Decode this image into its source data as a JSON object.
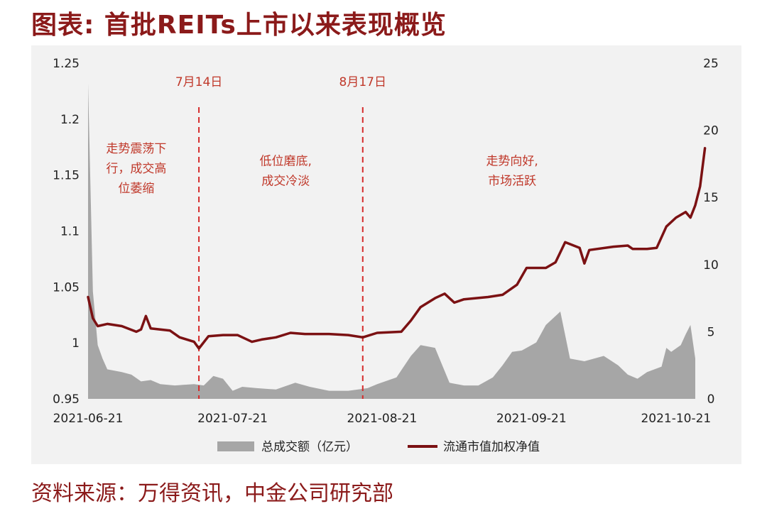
{
  "title": "图表: 首批REITs上市以来表现概览",
  "source": "资料来源：万得资讯，中金公司研究部",
  "colors": {
    "line": "#7b1113",
    "area": "#a6a6a6",
    "annotation": "#d62b2b",
    "title": "#8b1a1a"
  },
  "chart_data": {
    "type": "line",
    "x_type": "date",
    "x_range": [
      "2021-06-21",
      "2021-10-25"
    ],
    "x_ticks": [
      "2021-06-21",
      "2021-07-21",
      "2021-08-21",
      "2021-09-21",
      "2021-10-21"
    ],
    "left_axis": {
      "min": 0.95,
      "max": 1.25,
      "ticks": [
        "0.95",
        "1",
        "1.05",
        "1.1",
        "1.15",
        "1.2",
        "1.25"
      ]
    },
    "right_axis": {
      "min": 0,
      "max": 25,
      "ticks": [
        "0",
        "5",
        "10",
        "15",
        "20",
        "25"
      ]
    },
    "legend_position": "bottom",
    "series": [
      {
        "name": "总成交额（亿元）",
        "type": "area",
        "axis": "right",
        "points": [
          [
            "2021-06-21",
            23.5
          ],
          [
            "2021-06-22",
            8.0
          ],
          [
            "2021-06-23",
            4.0
          ],
          [
            "2021-06-24",
            3.0
          ],
          [
            "2021-06-25",
            2.2
          ],
          [
            "2021-06-28",
            2.0
          ],
          [
            "2021-06-30",
            1.8
          ],
          [
            "2021-07-02",
            1.3
          ],
          [
            "2021-07-04",
            1.4
          ],
          [
            "2021-07-06",
            1.1
          ],
          [
            "2021-07-09",
            1.0
          ],
          [
            "2021-07-13",
            1.1
          ],
          [
            "2021-07-15",
            1.0
          ],
          [
            "2021-07-17",
            1.7
          ],
          [
            "2021-07-19",
            1.5
          ],
          [
            "2021-07-21",
            0.6
          ],
          [
            "2021-07-23",
            0.9
          ],
          [
            "2021-07-26",
            0.8
          ],
          [
            "2021-07-30",
            0.7
          ],
          [
            "2021-08-03",
            1.2
          ],
          [
            "2021-08-06",
            0.9
          ],
          [
            "2021-08-10",
            0.6
          ],
          [
            "2021-08-14",
            0.6
          ],
          [
            "2021-08-18",
            0.8
          ],
          [
            "2021-08-20",
            1.1
          ],
          [
            "2021-08-24",
            1.6
          ],
          [
            "2021-08-27",
            3.2
          ],
          [
            "2021-08-29",
            4.0
          ],
          [
            "2021-09-01",
            3.8
          ],
          [
            "2021-09-04",
            1.2
          ],
          [
            "2021-09-07",
            1.0
          ],
          [
            "2021-09-10",
            1.0
          ],
          [
            "2021-09-13",
            1.6
          ],
          [
            "2021-09-15",
            2.5
          ],
          [
            "2021-09-17",
            3.5
          ],
          [
            "2021-09-19",
            3.6
          ],
          [
            "2021-09-22",
            4.2
          ],
          [
            "2021-09-24",
            5.5
          ],
          [
            "2021-09-27",
            6.5
          ],
          [
            "2021-09-29",
            3.0
          ],
          [
            "2021-10-02",
            2.8
          ],
          [
            "2021-10-06",
            3.2
          ],
          [
            "2021-10-09",
            2.5
          ],
          [
            "2021-10-11",
            1.8
          ],
          [
            "2021-10-13",
            1.5
          ],
          [
            "2021-10-15",
            2.0
          ],
          [
            "2021-10-18",
            2.4
          ],
          [
            "2021-10-19",
            3.8
          ],
          [
            "2021-10-20",
            3.5
          ],
          [
            "2021-10-22",
            4.0
          ],
          [
            "2021-10-23",
            4.8
          ],
          [
            "2021-10-24",
            5.5
          ],
          [
            "2021-10-25",
            3.0
          ]
        ]
      },
      {
        "name": "流通市值加权净值",
        "type": "line",
        "axis": "left",
        "points": [
          [
            "2021-06-21",
            1.041
          ],
          [
            "2021-06-22",
            1.022
          ],
          [
            "2021-06-23",
            1.015
          ],
          [
            "2021-06-25",
            1.017
          ],
          [
            "2021-06-28",
            1.015
          ],
          [
            "2021-07-01",
            1.01
          ],
          [
            "2021-07-02",
            1.012
          ],
          [
            "2021-07-03",
            1.024
          ],
          [
            "2021-07-04",
            1.013
          ],
          [
            "2021-07-08",
            1.011
          ],
          [
            "2021-07-10",
            1.005
          ],
          [
            "2021-07-13",
            1.001
          ],
          [
            "2021-07-14",
            0.995
          ],
          [
            "2021-07-16",
            1.006
          ],
          [
            "2021-07-19",
            1.007
          ],
          [
            "2021-07-22",
            1.007
          ],
          [
            "2021-07-25",
            1.001
          ],
          [
            "2021-07-27",
            1.003
          ],
          [
            "2021-07-30",
            1.005
          ],
          [
            "2021-08-02",
            1.009
          ],
          [
            "2021-08-05",
            1.008
          ],
          [
            "2021-08-10",
            1.008
          ],
          [
            "2021-08-14",
            1.007
          ],
          [
            "2021-08-17",
            1.005
          ],
          [
            "2021-08-20",
            1.009
          ],
          [
            "2021-08-25",
            1.01
          ],
          [
            "2021-08-27",
            1.02
          ],
          [
            "2021-08-29",
            1.032
          ],
          [
            "2021-09-01",
            1.04
          ],
          [
            "2021-09-03",
            1.044
          ],
          [
            "2021-09-05",
            1.036
          ],
          [
            "2021-09-07",
            1.039
          ],
          [
            "2021-09-12",
            1.041
          ],
          [
            "2021-09-15",
            1.043
          ],
          [
            "2021-09-18",
            1.052
          ],
          [
            "2021-09-20",
            1.067
          ],
          [
            "2021-09-24",
            1.067
          ],
          [
            "2021-09-26",
            1.072
          ],
          [
            "2021-09-28",
            1.09
          ],
          [
            "2021-10-01",
            1.085
          ],
          [
            "2021-10-02",
            1.071
          ],
          [
            "2021-10-03",
            1.083
          ],
          [
            "2021-10-08",
            1.086
          ],
          [
            "2021-10-11",
            1.087
          ],
          [
            "2021-10-12",
            1.084
          ],
          [
            "2021-10-15",
            1.084
          ],
          [
            "2021-10-17",
            1.085
          ],
          [
            "2021-10-19",
            1.104
          ],
          [
            "2021-10-21",
            1.112
          ],
          [
            "2021-10-23",
            1.117
          ],
          [
            "2021-10-24",
            1.112
          ],
          [
            "2021-10-25",
            1.123
          ],
          [
            "2021-10-26",
            1.14
          ],
          [
            "2021-10-27",
            1.174
          ]
        ]
      }
    ],
    "markers": [
      {
        "label": "7月14日",
        "date": "2021-07-14"
      },
      {
        "label": "8月17日",
        "date": "2021-08-17"
      }
    ],
    "annotations": [
      {
        "lines": [
          "走势震荡下",
          "行，成交高",
          "位萎缩"
        ],
        "date": "2021-07-01",
        "value": 1.17
      },
      {
        "lines": [
          "低位磨底,",
          "成交冷淡"
        ],
        "date": "2021-08-01",
        "value": 1.159
      },
      {
        "lines": [
          "走势向好,",
          "市场活跃"
        ],
        "date": "2021-09-17",
        "value": 1.159
      }
    ]
  }
}
